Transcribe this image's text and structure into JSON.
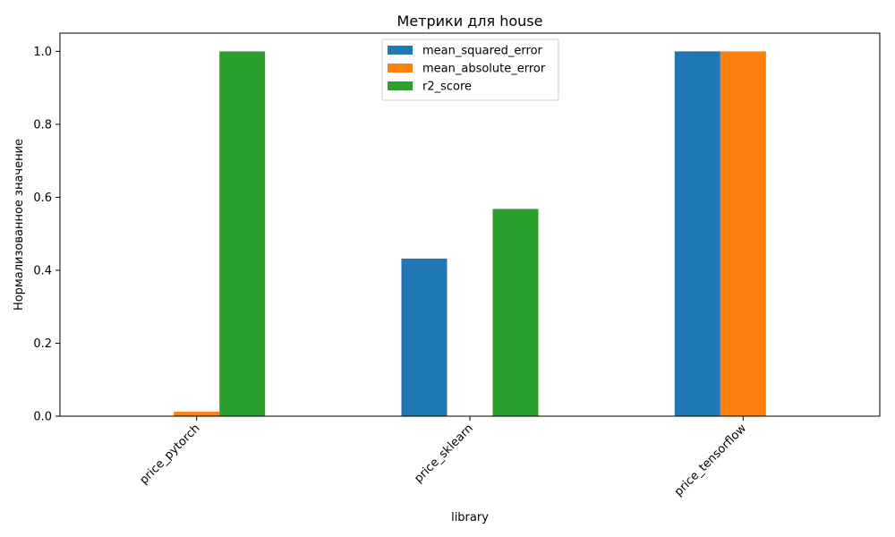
{
  "chart_data": {
    "type": "bar",
    "title": "Метрики для house",
    "xlabel": "library",
    "ylabel": "Нормализованное значение",
    "categories": [
      "price_pytorch",
      "price_sklearn",
      "price_tensorflow"
    ],
    "series": [
      {
        "name": "mean_squared_error",
        "values": [
          0.0,
          0.432,
          1.0
        ],
        "color": "#1f77b4"
      },
      {
        "name": "mean_absolute_error",
        "values": [
          0.012,
          0.0,
          1.0
        ],
        "color": "#ff7f0e"
      },
      {
        "name": "r2_score",
        "values": [
          1.0,
          0.568,
          0.0
        ],
        "color": "#2ca02c"
      }
    ],
    "ylim": [
      0,
      1.05
    ],
    "yticks": [
      "0.0",
      "0.2",
      "0.4",
      "0.6",
      "0.8",
      "1.0"
    ],
    "legend": "upper-center",
    "grid": false
  }
}
